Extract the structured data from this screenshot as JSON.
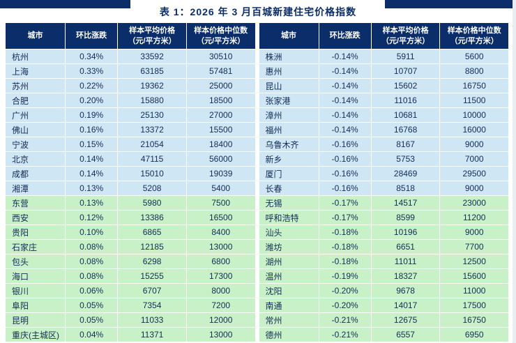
{
  "title": "表 1：2026 年 3 月百城新建住宅价格指数",
  "colors": {
    "header_navy": "#0b2e6b",
    "row_blue": "#cfe7f4",
    "row_green": "#c8f1c8"
  },
  "columns": [
    {
      "label": "城市",
      "sub": ""
    },
    {
      "label": "环比涨跌",
      "sub": ""
    },
    {
      "label": "样本平均价格",
      "sub": "（元/平方米）"
    },
    {
      "label": "样本价格中位数",
      "sub": "（元/平方米）"
    }
  ],
  "tables": [
    {
      "name": "left",
      "rows": [
        {
          "city": "杭州",
          "change": "0.34%",
          "avg": "33592",
          "median": "30510",
          "group": "blue"
        },
        {
          "city": "上海",
          "change": "0.33%",
          "avg": "63185",
          "median": "57481",
          "group": "blue"
        },
        {
          "city": "苏州",
          "change": "0.22%",
          "avg": "19362",
          "median": "25000",
          "group": "blue"
        },
        {
          "city": "合肥",
          "change": "0.20%",
          "avg": "15880",
          "median": "18500",
          "group": "blue"
        },
        {
          "city": "广州",
          "change": "0.19%",
          "avg": "25130",
          "median": "27000",
          "group": "blue"
        },
        {
          "city": "佛山",
          "change": "0.16%",
          "avg": "13372",
          "median": "15500",
          "group": "blue"
        },
        {
          "city": "宁波",
          "change": "0.15%",
          "avg": "21054",
          "median": "18400",
          "group": "blue"
        },
        {
          "city": "北京",
          "change": "0.14%",
          "avg": "47115",
          "median": "56000",
          "group": "blue"
        },
        {
          "city": "成都",
          "change": "0.14%",
          "avg": "15010",
          "median": "19039",
          "group": "blue"
        },
        {
          "city": "湘潭",
          "change": "0.13%",
          "avg": "5208",
          "median": "5400",
          "group": "blue"
        },
        {
          "city": "东营",
          "change": "0.13%",
          "avg": "5980",
          "median": "7500",
          "group": "green"
        },
        {
          "city": "西安",
          "change": "0.12%",
          "avg": "13386",
          "median": "16500",
          "group": "green"
        },
        {
          "city": "贵阳",
          "change": "0.10%",
          "avg": "6865",
          "median": "8400",
          "group": "green"
        },
        {
          "city": "石家庄",
          "change": "0.08%",
          "avg": "12185",
          "median": "13000",
          "group": "green"
        },
        {
          "city": "包头",
          "change": "0.08%",
          "avg": "6298",
          "median": "6800",
          "group": "green"
        },
        {
          "city": "海口",
          "change": "0.08%",
          "avg": "15255",
          "median": "17300",
          "group": "green"
        },
        {
          "city": "银川",
          "change": "0.06%",
          "avg": "6707",
          "median": "8000",
          "group": "green"
        },
        {
          "city": "阜阳",
          "change": "0.05%",
          "avg": "7354",
          "median": "7200",
          "group": "green"
        },
        {
          "city": "昆明",
          "change": "0.05%",
          "avg": "11033",
          "median": "12000",
          "group": "green"
        },
        {
          "city": "重庆(主城区)",
          "change": "0.04%",
          "avg": "11371",
          "median": "13000",
          "group": "green"
        }
      ]
    },
    {
      "name": "right",
      "rows": [
        {
          "city": "株洲",
          "change": "-0.14%",
          "avg": "5911",
          "median": "5600",
          "group": "blue"
        },
        {
          "city": "惠州",
          "change": "-0.14%",
          "avg": "10707",
          "median": "8800",
          "group": "blue"
        },
        {
          "city": "昆山",
          "change": "-0.14%",
          "avg": "15602",
          "median": "16750",
          "group": "blue"
        },
        {
          "city": "张家港",
          "change": "-0.14%",
          "avg": "11016",
          "median": "11500",
          "group": "blue"
        },
        {
          "city": "漳州",
          "change": "-0.14%",
          "avg": "10681",
          "median": "10000",
          "group": "blue"
        },
        {
          "city": "福州",
          "change": "-0.14%",
          "avg": "16768",
          "median": "16000",
          "group": "blue"
        },
        {
          "city": "乌鲁木齐",
          "change": "-0.16%",
          "avg": "8167",
          "median": "9000",
          "group": "blue"
        },
        {
          "city": "新乡",
          "change": "-0.16%",
          "avg": "5753",
          "median": "7000",
          "group": "blue"
        },
        {
          "city": "厦门",
          "change": "-0.16%",
          "avg": "28469",
          "median": "29500",
          "group": "blue"
        },
        {
          "city": "长春",
          "change": "-0.16%",
          "avg": "8518",
          "median": "9000",
          "group": "blue"
        },
        {
          "city": "无锡",
          "change": "-0.17%",
          "avg": "14517",
          "median": "23000",
          "group": "green"
        },
        {
          "city": "呼和浩特",
          "change": "-0.17%",
          "avg": "8599",
          "median": "11200",
          "group": "green"
        },
        {
          "city": "汕头",
          "change": "-0.18%",
          "avg": "10196",
          "median": "9000",
          "group": "green"
        },
        {
          "city": "潍坊",
          "change": "-0.18%",
          "avg": "6651",
          "median": "7700",
          "group": "green"
        },
        {
          "city": "湖州",
          "change": "-0.18%",
          "avg": "11011",
          "median": "12500",
          "group": "green"
        },
        {
          "city": "温州",
          "change": "-0.19%",
          "avg": "18327",
          "median": "15600",
          "group": "green"
        },
        {
          "city": "沈阳",
          "change": "-0.20%",
          "avg": "9678",
          "median": "11000",
          "group": "green"
        },
        {
          "city": "南通",
          "change": "-0.20%",
          "avg": "14017",
          "median": "17500",
          "group": "green"
        },
        {
          "city": "常州",
          "change": "-0.21%",
          "avg": "12675",
          "median": "16750",
          "group": "green"
        },
        {
          "city": "德州",
          "change": "-0.21%",
          "avg": "6557",
          "median": "6950",
          "group": "green"
        }
      ]
    }
  ]
}
